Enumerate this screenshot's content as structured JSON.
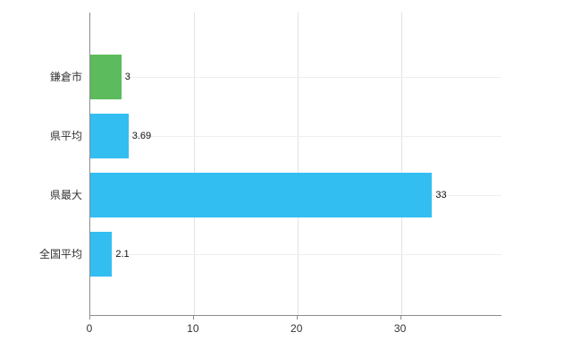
{
  "chart_data": {
    "type": "bar",
    "orientation": "horizontal",
    "title": "",
    "xlabel": "",
    "ylabel": "",
    "categories": [
      "鎌倉市",
      "県平均",
      "県最大",
      "全国平均"
    ],
    "values": [
      3,
      3.69,
      33,
      2.1
    ],
    "value_labels": [
      "3",
      "3.69",
      "33",
      "2.1"
    ],
    "series": [
      {
        "name": "value",
        "values": [
          3,
          3.69,
          33,
          2.1
        ]
      }
    ],
    "bar_colors": [
      "#5CBB5C",
      "#33BEF2",
      "#33BEF2",
      "#33BEF2"
    ],
    "highlight_category": "鎌倉市",
    "highlight_color": "#5CBB5C",
    "default_color": "#33BEF2",
    "x_ticks": [
      0,
      10,
      20,
      30
    ],
    "x_tick_labels": [
      "0",
      "10",
      "20",
      "30"
    ],
    "xlim": [
      0,
      39.7
    ],
    "grid": "vertical-gridlines-at-ticks, faint horizontal row guide lines",
    "legend": "none"
  },
  "colors": {
    "axis": "#8c8c8c",
    "gridline": "#e3e3e3",
    "rowline": "#eeeeee",
    "background": "#ffffff",
    "label_text": "#333333",
    "value_text": "#111111"
  }
}
